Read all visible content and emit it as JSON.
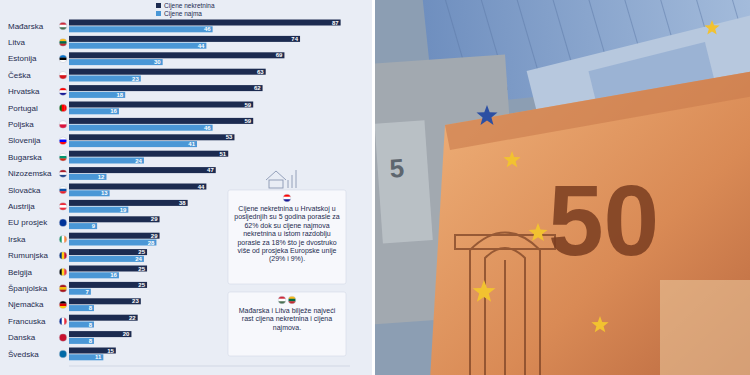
{
  "chart_data": {
    "type": "bar",
    "orientation": "horizontal",
    "categories": [
      "Mađarska",
      "Litva",
      "Estonija",
      "Češka",
      "Hrvatska",
      "Portugal",
      "Poljska",
      "Slovenija",
      "Bugarska",
      "Nizozemska",
      "Slovačka",
      "Austrija",
      "EU prosjek",
      "Irska",
      "Rumunjska",
      "Belgija",
      "Španjolska",
      "Njemačka",
      "Francuska",
      "Danska",
      "Švedska"
    ],
    "series": [
      {
        "name": "Cijene nekretnina",
        "color": "#1c2b50",
        "values": [
          87,
          74,
          69,
          63,
          62,
          59,
          59,
          53,
          51,
          47,
          44,
          38,
          29,
          29,
          25,
          25,
          25,
          23,
          22,
          20,
          15
        ]
      },
      {
        "name": "Cijene najma",
        "color": "#4a97d6",
        "values": [
          46,
          44,
          30,
          23,
          18,
          16,
          46,
          41,
          24,
          12,
          13,
          19,
          9,
          28,
          24,
          16,
          7,
          8,
          8,
          8,
          11
        ]
      }
    ],
    "xlim": [
      0,
      90
    ],
    "tick_labels": false,
    "grid": false,
    "data_labels": true,
    "legend": "top",
    "annotations": [
      "Cijene nekretnina u Hrvatskoj u posljednjih su 5 godina porasle za 62% dok su cijene najmova nekretnina u istom razdoblju porasle za 18% što je dvostruko više od prosjeka Europske unije (29% i 9%).",
      "Mađarska i Litva bilježe najveći rast cijena nekretnina i cijena najmova."
    ]
  },
  "photo": {
    "banknote_labels": [
      "50",
      "5"
    ]
  }
}
